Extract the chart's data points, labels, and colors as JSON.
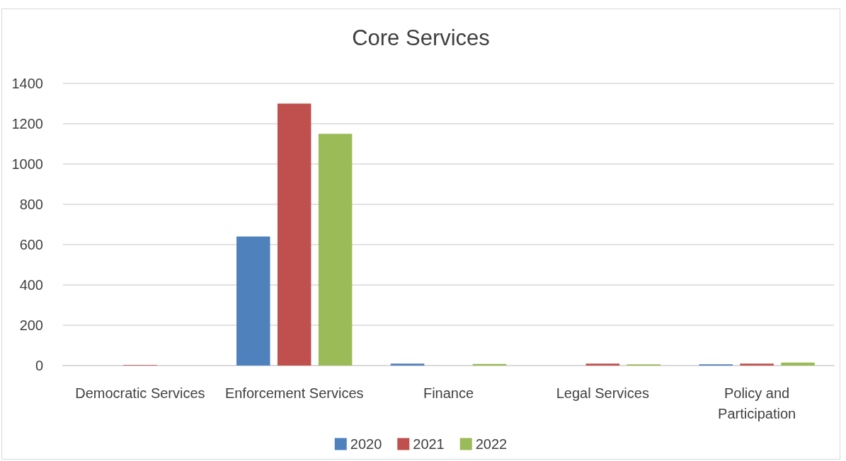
{
  "chart_data": {
    "type": "bar",
    "title": "Core Services",
    "categories": [
      "Democratic Services",
      "Enforcement Services",
      "Finance",
      "Legal Services",
      "Policy and\nParticipation"
    ],
    "series": [
      {
        "name": "2020",
        "color": "#4f81bd",
        "values": [
          0,
          640,
          10,
          0,
          6
        ]
      },
      {
        "name": "2021",
        "color": "#c0504d",
        "values": [
          3,
          1300,
          0,
          10,
          10
        ]
      },
      {
        "name": "2022",
        "color": "#9bbb59",
        "values": [
          0,
          1150,
          8,
          6,
          15
        ]
      }
    ],
    "ylim": [
      0,
      1400
    ],
    "yticks": [
      0,
      200,
      400,
      600,
      800,
      1000,
      1200,
      1400
    ],
    "grid": "y",
    "legend": "bottom"
  }
}
